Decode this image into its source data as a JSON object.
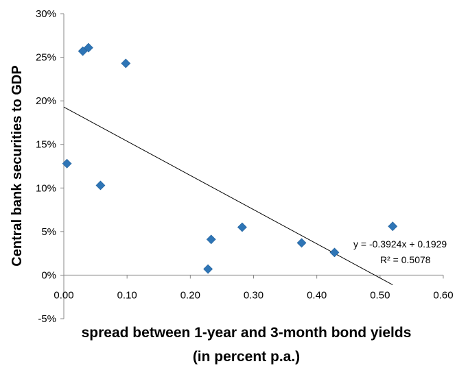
{
  "chart_data": {
    "type": "scatter",
    "xlabel_lines": [
      "spread between 1-year and 3-month bond yields",
      "(in percent p.a.)"
    ],
    "ylabel": "Central bank securities to GDP",
    "xlim": [
      0,
      0.6
    ],
    "ylim": [
      -0.05,
      0.3
    ],
    "x_ticks": [
      0,
      0.1,
      0.2,
      0.3,
      0.4,
      0.5,
      0.6
    ],
    "x_tick_labels": [
      "0.00",
      "0.10",
      "0.20",
      "0.30",
      "0.40",
      "0.50",
      "0.60"
    ],
    "y_ticks": [
      -0.05,
      0,
      0.05,
      0.1,
      0.15,
      0.2,
      0.25,
      0.3
    ],
    "y_tick_labels": [
      "-5%",
      "0%",
      "5%",
      "10%",
      "15%",
      "20%",
      "25%",
      "30%"
    ],
    "grid": false,
    "marker_color": "#2e75b6",
    "points": [
      {
        "x": 0.005,
        "y": 0.128
      },
      {
        "x": 0.03,
        "y": 0.257
      },
      {
        "x": 0.039,
        "y": 0.261
      },
      {
        "x": 0.058,
        "y": 0.103
      },
      {
        "x": 0.098,
        "y": 0.243
      },
      {
        "x": 0.228,
        "y": 0.007
      },
      {
        "x": 0.233,
        "y": 0.041
      },
      {
        "x": 0.282,
        "y": 0.055
      },
      {
        "x": 0.376,
        "y": 0.037
      },
      {
        "x": 0.428,
        "y": 0.026
      },
      {
        "x": 0.52,
        "y": 0.056
      }
    ],
    "trendline": {
      "slope": -0.3924,
      "intercept": 0.1929,
      "x_range": [
        0,
        0.52
      ],
      "equation": "y = -0.3924x + 0.1929",
      "r_squared": "R² = 0.5078"
    }
  }
}
